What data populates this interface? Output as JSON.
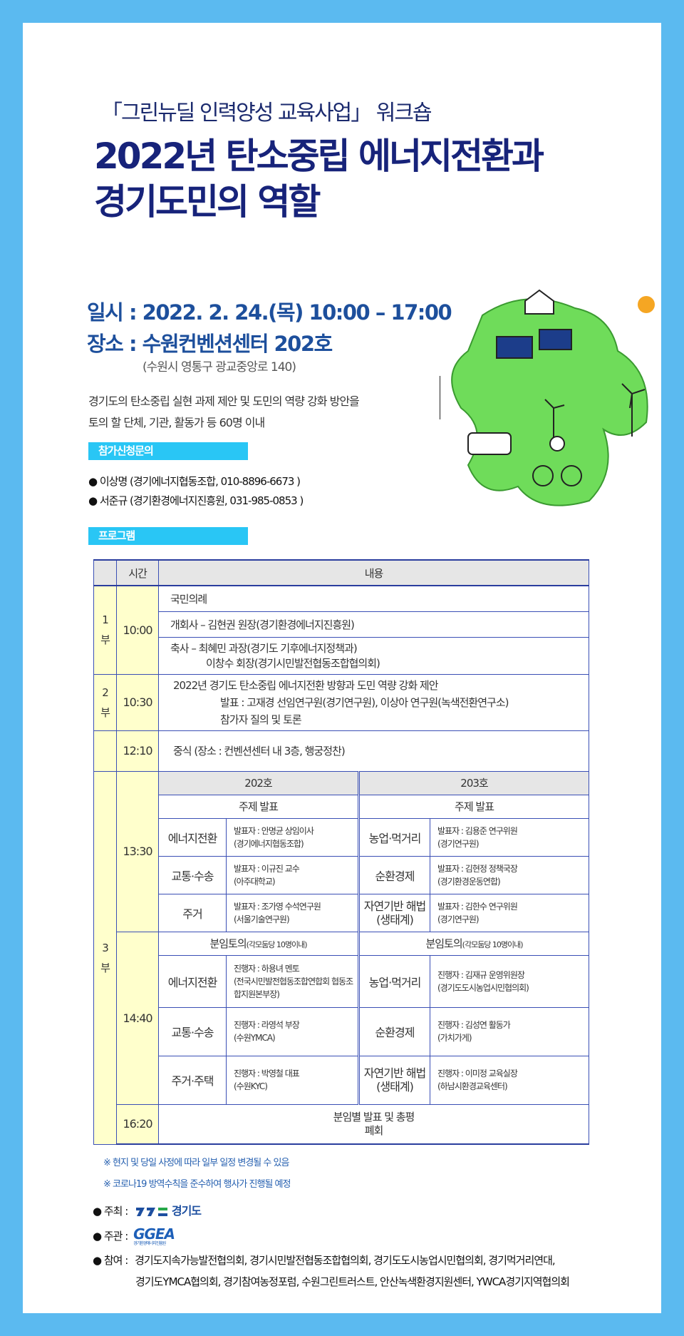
{
  "header": {
    "subtitle": "「그린뉴딜 인력양성 교육사업」 워크숍",
    "title_line1": "2022년 탄소중립 에너지전환과",
    "title_line2": "경기도민의 역할"
  },
  "info": {
    "date": "일시 : 2022. 2. 24.(목) 10:00 – 17:00",
    "place": "장소 : 수원컨벤션센터 202호",
    "address": "(수원시 영통구 광교중앙로 140)",
    "desc_line1": "경기도의 탄소중립 실현 과제 제안 및 도민의 역량 강화 방안을",
    "desc_line2": "토의 할 단체, 기관, 활동가 등 60명 이내"
  },
  "inquiry": {
    "label": "참가신청문의",
    "contacts": [
      "● 이상명 (경기에너지협동조합, 010-8896-6673 )",
      "● 서준규 (경기환경에너지진흥원, 031-985-0853 )"
    ]
  },
  "program": {
    "label": "프로그램",
    "headers": [
      "시간",
      "내용"
    ],
    "part1": {
      "label": "1\n부",
      "time": "10:00",
      "items": [
        "국민의례",
        "개회사 – 김현권 원장(경기환경에너지진흥원)",
        "축사 – 최혜민 과장(경기도 기후에너지정책과)",
        "이창수 회장(경기시민발전협동조합협의회)"
      ]
    },
    "part2": {
      "label": "2\n부",
      "time": "10:30",
      "items": [
        "2022년 경기도 탄소중립 에너지전환 방향과 도민 역량 강화 제안",
        "발표 : 고재경 선임연구원(경기연구원), 이상아 연구원(녹색전환연구소)",
        "참가자 질의 및 토론"
      ]
    },
    "lunch": {
      "time": "12:10",
      "text": "중식  (장소 : 컨벤션센터 내 3층, 행궁정찬)"
    },
    "part3": {
      "label": "3\n부",
      "s1": {
        "time": "13:30",
        "rooms": [
          "202호",
          "203호"
        ],
        "heading": "주제 발표",
        "rows": [
          [
            "에너지전환",
            "발표자 : 안명균 상임이사",
            "(경기에너지협동조합)",
            "농업·먹거리",
            "발표자 : 김용준 연구위원",
            "(경기연구원)"
          ],
          [
            "교통·수송",
            "발표자 : 이규진 교수",
            "(아주대학교)",
            "순환경제",
            "발표자 : 김현정 정책국장",
            "(경기환경운동연합)"
          ],
          [
            "주거",
            "발표자 : 조가영 수석연구원",
            "(서울기술연구원)",
            "자연기반 해법\n(생태계)",
            "발표자 : 김한수 연구위원",
            "(경기연구원)"
          ]
        ]
      },
      "s2": {
        "time": "14:40",
        "heading": "분임토의",
        "heading_note": "(각모둠당 10명이내)",
        "rows": [
          [
            "에너지전환",
            "진행자 : 하용녀 멘토",
            "(전국시민발전협동조합연합회 협동조합지원본부장)",
            "농업·먹거리",
            "진행자 : 김재규 운영위원장",
            "(경기도도시농업시민협의회)"
          ],
          [
            "교통·수송",
            "진행자 : 라영석 부장",
            "(수원YMCA)",
            "순환경제",
            "진행자 : 김성연 활동가",
            "(가치가게)"
          ],
          [
            "주거·주택",
            "진행자 : 박영철 대표",
            "(수원KYC)",
            "자연기반 해법\n(생태계)",
            "진행자 : 이미정 교육실장",
            "(하남시환경교육센터)"
          ]
        ]
      },
      "s3": {
        "time": "16:20",
        "line1": "분임별 발표 및 총평",
        "line2": "폐회"
      }
    }
  },
  "notes": [
    "※ 현지 및 당일 사정에 따라 일부 일정 변경될 수 있음",
    "※ 코로나19 방역수칙을 준수하여 행사가 진행될 예정"
  ],
  "sponsors": {
    "host_label": "● 주최 :",
    "host": "경기도",
    "organizer_label": "● 주관 :",
    "organizer_logo": "GGEA",
    "organizer_name": "경기환경에너지진흥원",
    "participants_label": "● 참여 :",
    "participants_line1": "경기도지속가능발전협의회, 경기시민발전협동조합협의회, 경기도도시농업시민협의회,  경기먹거리연대,",
    "participants_line2": "경기도YMCA협의회, 경기참여농정포럼,  수원그린트러스트, 안산녹색환경지원센터, YWCA경기지역협의회"
  },
  "colors": {
    "border": "#5bbaf0",
    "title": "#17237a",
    "accent": "#29c6f5",
    "table_line": "#3a4fb5",
    "part_bg": "#ffffcc"
  }
}
